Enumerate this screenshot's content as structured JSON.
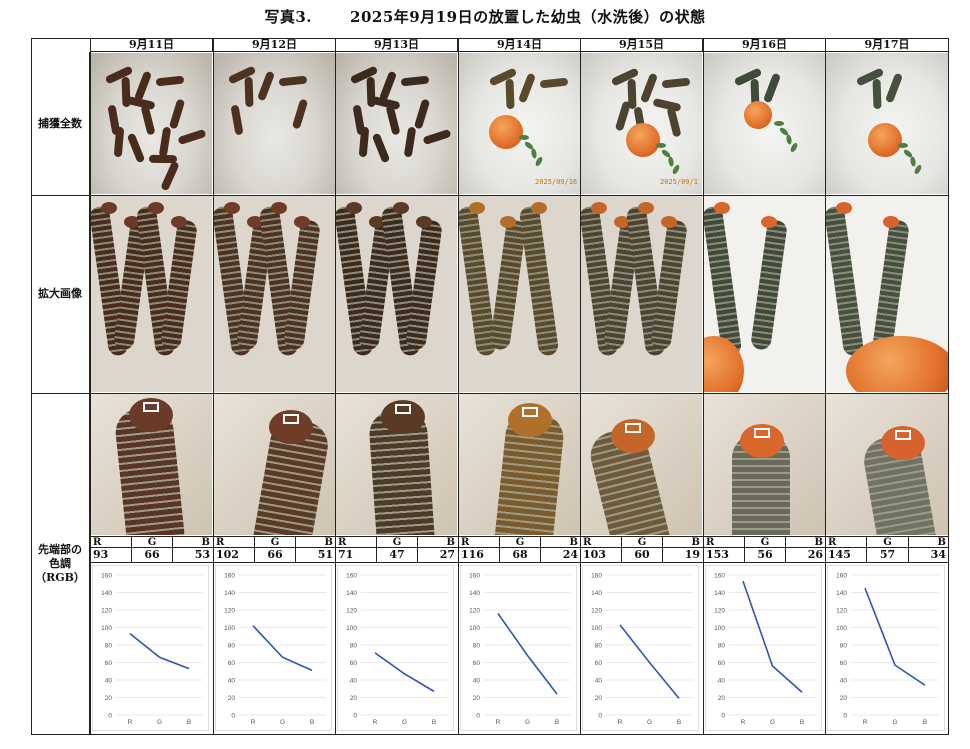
{
  "title": {
    "prefix": "写真3.",
    "main": "2025年9月19日の放置した幼虫（水洗後）の状態"
  },
  "rows": {
    "capture": "捕獲全数",
    "enlarged": "拡大画像",
    "tip_color": "先端部の色調（RGB）"
  },
  "rgb_letters": [
    "R",
    "G",
    "B"
  ],
  "days": [
    {
      "date": "9月11日",
      "R": 93,
      "G": 66,
      "B": 53
    },
    {
      "date": "9月12日",
      "R": 102,
      "G": 66,
      "B": 51
    },
    {
      "date": "9月13日",
      "R": 71,
      "G": 47,
      "B": 27
    },
    {
      "date": "9月14日",
      "R": 116,
      "G": 68,
      "B": 24
    },
    {
      "date": "9月15日",
      "R": 103,
      "G": 60,
      "B": 19
    },
    {
      "date": "9月16日",
      "R": 153,
      "G": 56,
      "B": 26
    },
    {
      "date": "9月17日",
      "R": 145,
      "G": 57,
      "B": 34
    }
  ],
  "photo_stamps": [
    "2025/09/16",
    "2025/09/1"
  ],
  "chart_data": [
    {
      "type": "line",
      "categories": [
        "R",
        "G",
        "B"
      ],
      "values": [
        93,
        66,
        53
      ],
      "ylim": [
        0,
        160
      ],
      "yticks": [
        0,
        20,
        40,
        60,
        80,
        100,
        120,
        140,
        160
      ],
      "color": "#2f55b4"
    },
    {
      "type": "line",
      "categories": [
        "R",
        "G",
        "B"
      ],
      "values": [
        102,
        66,
        51
      ],
      "ylim": [
        0,
        160
      ],
      "yticks": [
        0,
        20,
        40,
        60,
        80,
        100,
        120,
        140,
        160
      ],
      "color": "#2f55b4"
    },
    {
      "type": "line",
      "categories": [
        "R",
        "G",
        "B"
      ],
      "values": [
        71,
        47,
        27
      ],
      "ylim": [
        0,
        160
      ],
      "yticks": [
        0,
        20,
        40,
        60,
        80,
        100,
        120,
        140,
        160
      ],
      "color": "#2f55b4"
    },
    {
      "type": "line",
      "categories": [
        "R",
        "G",
        "B"
      ],
      "values": [
        116,
        68,
        24
      ],
      "ylim": [
        0,
        160
      ],
      "yticks": [
        0,
        20,
        40,
        60,
        80,
        100,
        120,
        140,
        160
      ],
      "color": "#2f55b4"
    },
    {
      "type": "line",
      "categories": [
        "R",
        "G",
        "B"
      ],
      "values": [
        103,
        60,
        19
      ],
      "ylim": [
        0,
        160
      ],
      "yticks": [
        0,
        20,
        40,
        60,
        80,
        100,
        120,
        140,
        160
      ],
      "color": "#2f55b4"
    },
    {
      "type": "line",
      "categories": [
        "R",
        "G",
        "B"
      ],
      "values": [
        153,
        56,
        26
      ],
      "ylim": [
        0,
        160
      ],
      "yticks": [
        0,
        20,
        40,
        60,
        80,
        100,
        120,
        140,
        160
      ],
      "color": "#2f55b4"
    },
    {
      "type": "line",
      "categories": [
        "R",
        "G",
        "B"
      ],
      "values": [
        145,
        57,
        34
      ],
      "ylim": [
        0,
        160
      ],
      "yticks": [
        0,
        20,
        40,
        60,
        80,
        100,
        120,
        140,
        160
      ],
      "color": "#2f55b4"
    }
  ]
}
